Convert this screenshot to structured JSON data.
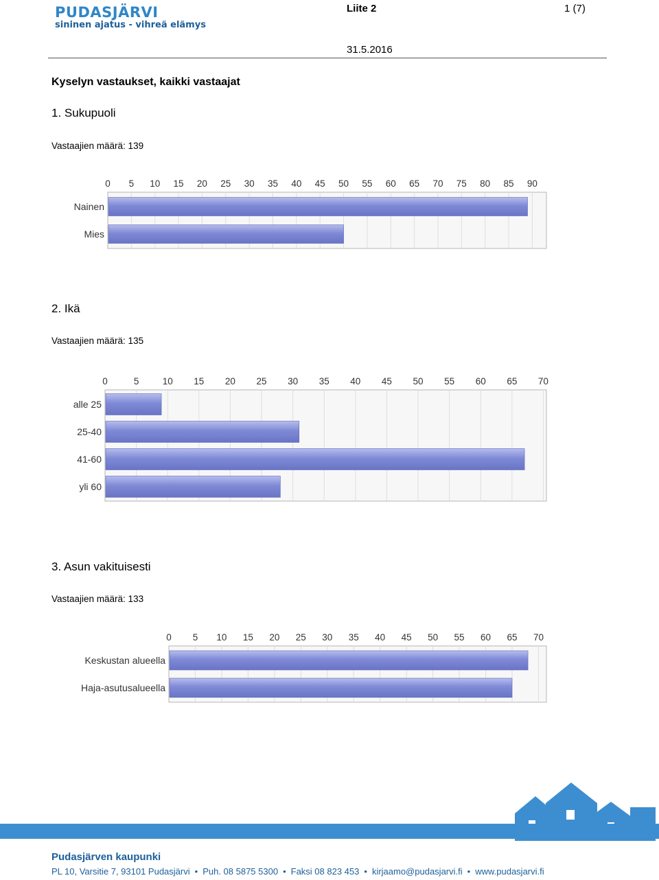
{
  "header": {
    "logo_main": "PUDASJÄRVI",
    "logo_sub": "sininen ajatus - vihreä elämys",
    "attachment": "Liite 2",
    "page": "1 (7)",
    "date": "31.5.2016"
  },
  "survey_title": "Kyselyn vastaukset, kaikki vastaajat",
  "questions": [
    {
      "title": "1. Sukupuoli",
      "respondents": "Vastaajien määrä: 139"
    },
    {
      "title": "2. Ikä",
      "respondents": "Vastaajien määrä: 135"
    },
    {
      "title": "3. Asun vakituisesti",
      "respondents": "Vastaajien määrä: 133"
    }
  ],
  "chart_data": [
    {
      "type": "bar",
      "orientation": "horizontal",
      "categories": [
        "Nainen",
        "Mies"
      ],
      "values": [
        89,
        50
      ],
      "xlim": [
        0,
        93
      ],
      "ticks": [
        0,
        5,
        10,
        15,
        20,
        25,
        30,
        35,
        40,
        45,
        50,
        55,
        60,
        65,
        70,
        75,
        80,
        85,
        90
      ],
      "grid": true,
      "bar_color": "#7f8ad6"
    },
    {
      "type": "bar",
      "orientation": "horizontal",
      "categories": [
        "alle 25",
        "25-40",
        "41-60",
        "yli 60"
      ],
      "values": [
        9,
        31,
        67,
        28
      ],
      "xlim": [
        0,
        70.5
      ],
      "ticks": [
        0,
        5,
        10,
        15,
        20,
        25,
        30,
        35,
        40,
        45,
        50,
        55,
        60,
        65,
        70
      ],
      "grid": true,
      "bar_color": "#7f8ad6"
    },
    {
      "type": "bar",
      "orientation": "horizontal",
      "categories": [
        "Keskustan alueella",
        "Haja-asutusalueella"
      ],
      "values": [
        68,
        65
      ],
      "xlim": [
        0,
        71.5
      ],
      "ticks": [
        0,
        5,
        10,
        15,
        20,
        25,
        30,
        35,
        40,
        45,
        50,
        55,
        60,
        65,
        70
      ],
      "grid": true,
      "bar_color": "#7f8ad6"
    }
  ],
  "footer": {
    "org": "Pudasjärven kaupunki",
    "contacts": [
      "PL 10, Varsitie 7, 93101 Pudasjärvi",
      "Puh. 08 5875 5300",
      "Faksi 08 823 453",
      "kirjaamo@pudasjarvi.fi",
      "www.pudasjarvi.fi"
    ],
    "separator": "•",
    "band_color": "#3d8ed0"
  }
}
